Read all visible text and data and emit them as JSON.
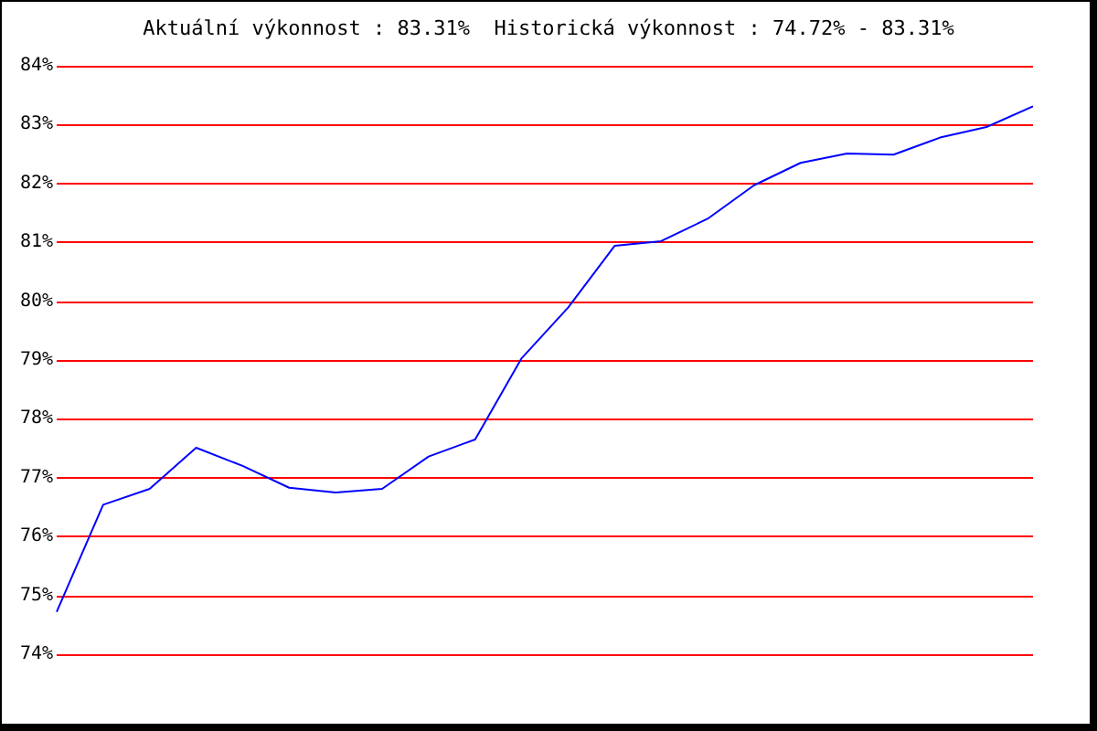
{
  "chart_data": {
    "type": "line",
    "title": "Aktuální výkonnost : 83.31%  Historická výkonnost : 74.72% - 83.31%",
    "categories": [
      null,
      null,
      null,
      null,
      null,
      null,
      null,
      null,
      null,
      null,
      null,
      null,
      null,
      null,
      null,
      null,
      null,
      null,
      null,
      null,
      null,
      null
    ],
    "series": [
      {
        "color": "#0000ff",
        "values": [
          74.72,
          76.54,
          76.81,
          77.51,
          77.2,
          76.83,
          76.75,
          76.81,
          77.36,
          77.65,
          79.03,
          79.89,
          80.94,
          81.02,
          81.4,
          81.97,
          82.35,
          82.51,
          82.49,
          82.78,
          82.96,
          83.31
        ]
      }
    ],
    "ylim": [
      74,
      84
    ],
    "yticks": [
      {
        "value": 74,
        "label": "74%"
      },
      {
        "value": 75,
        "label": "75%"
      },
      {
        "value": 76,
        "label": "76%"
      },
      {
        "value": 77,
        "label": "77%"
      },
      {
        "value": 78,
        "label": "78%"
      },
      {
        "value": 79,
        "label": "79%"
      },
      {
        "value": 80,
        "label": "80%"
      },
      {
        "value": 81,
        "label": "81%"
      },
      {
        "value": 82,
        "label": "82%"
      },
      {
        "value": 83,
        "label": "83%"
      },
      {
        "value": 84,
        "label": "84%"
      }
    ],
    "grid": "y",
    "marker": "none",
    "line_style": "solid"
  }
}
